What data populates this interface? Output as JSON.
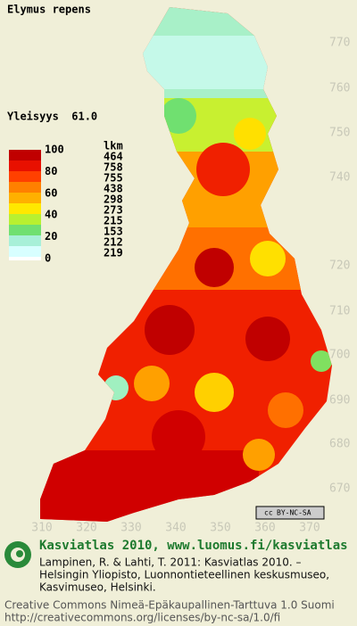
{
  "map": {
    "title": "Elymus repens",
    "frequency": "Yleisyys  61.0",
    "y_labels": [
      "770",
      "760",
      "750",
      "740",
      "720",
      "710",
      "700",
      "690",
      "680",
      "670"
    ],
    "x_labels": [
      "310",
      "320",
      "330",
      "340",
      "350",
      "360",
      "370"
    ],
    "license_badge": "BY-NC-SA"
  },
  "legend": {
    "scale_labels": [
      "100",
      "80",
      "60",
      "40",
      "20",
      "0"
    ],
    "count_header": "lkm",
    "counts": [
      "464",
      "758",
      "755",
      "438",
      "298",
      "273",
      "215",
      "153",
      "212",
      "219"
    ]
  },
  "footer": {
    "heading": "Kasviatlas 2010, www.luomus.fi/kasviatlas",
    "citation": [
      "Lampinen, R. & Lahti, T. 2011: Kasviatlas 2010. –",
      "Helsingin Yliopisto, Luonnontieteellinen keskusmuseo,",
      "Kasvimuseo, Helsinki."
    ],
    "license": [
      "Creative Commons Nimeä-Epäkaupallinen-Tarttuva 1.0 Suomi",
      "http://creativecommons.org/licenses/by-nc-sa/1.0/fi"
    ]
  }
}
